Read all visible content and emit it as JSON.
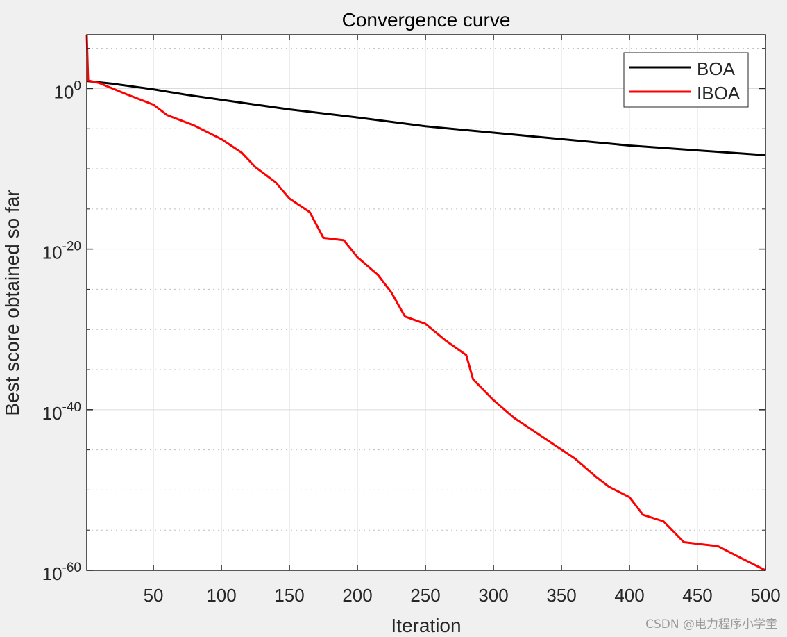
{
  "chart_data": {
    "type": "line",
    "title": "Convergence curve",
    "xlabel": "Iteration",
    "ylabel": "Best score obtained so far",
    "xlim": [
      1,
      500
    ],
    "yscale": "log",
    "ylim_log10": [
      -60,
      6.7
    ],
    "x_ticks": [
      50,
      100,
      150,
      200,
      250,
      300,
      350,
      400,
      450,
      500
    ],
    "y_ticks_log10": [
      0,
      -20,
      -40,
      -60
    ],
    "y_tick_labels": [
      {
        "base": "10",
        "exp": "0"
      },
      {
        "base": "10",
        "exp": "-20"
      },
      {
        "base": "10",
        "exp": "-40"
      },
      {
        "base": "10",
        "exp": "-60"
      }
    ],
    "y_minor_grid_log10": [
      5,
      -5,
      -10,
      -15,
      -25,
      -30,
      -35,
      -45,
      -50,
      -55
    ],
    "grid": true,
    "legend_position": "top-right",
    "series": [
      {
        "name": "BOA",
        "color": "#000000",
        "x": [
          1,
          20,
          50,
          75,
          100,
          125,
          150,
          200,
          250,
          300,
          350,
          400,
          450,
          500
        ],
        "y_log10": [
          0.95,
          0.6,
          -0.1,
          -0.8,
          -1.4,
          -2.0,
          -2.6,
          -3.6,
          -4.7,
          -5.5,
          -6.3,
          -7.1,
          -7.7,
          -8.3
        ]
      },
      {
        "name": "IBOA",
        "color": "#ff0000",
        "x": [
          1,
          2,
          10,
          30,
          50,
          60,
          80,
          100,
          115,
          125,
          140,
          150,
          165,
          175,
          190,
          200,
          215,
          225,
          235,
          250,
          265,
          280,
          285,
          300,
          315,
          330,
          345,
          360,
          375,
          385,
          400,
          410,
          425,
          440,
          465,
          480,
          500
        ],
        "y_log10": [
          6.7,
          1.0,
          0.7,
          -0.7,
          -2.0,
          -3.3,
          -4.6,
          -6.3,
          -8.0,
          -9.8,
          -11.7,
          -13.7,
          -15.4,
          -18.6,
          -18.9,
          -21.0,
          -23.2,
          -25.4,
          -28.4,
          -29.3,
          -31.4,
          -33.2,
          -36.2,
          -38.8,
          -41.0,
          -42.7,
          -44.4,
          -46.1,
          -48.3,
          -49.6,
          -50.9,
          -53.1,
          -53.9,
          -56.5,
          -57.0,
          -58.3,
          -60.0
        ]
      }
    ]
  },
  "watermark": "CSDN @电力程序小学童"
}
